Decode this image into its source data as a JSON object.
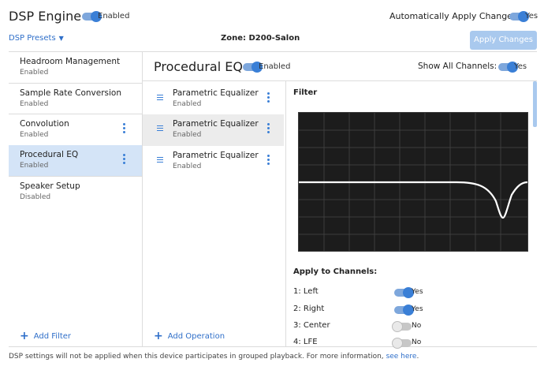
{
  "header": {
    "title": "DSP Engine",
    "engine_status": "Enabled",
    "auto_apply_label": "Automatically Apply Changes",
    "auto_apply_status": "Yes",
    "presets_label": "DSP Presets",
    "zone_label": "Zone: D200-Salon",
    "apply_button": "Apply Changes"
  },
  "sidebar": {
    "items": [
      {
        "name": "Headroom Management",
        "state": "Enabled"
      },
      {
        "name": "Sample Rate Conversion",
        "state": "Enabled"
      },
      {
        "name": "Convolution",
        "state": "Enabled"
      },
      {
        "name": "Procedural EQ",
        "state": "Enabled"
      },
      {
        "name": "Speaker Setup",
        "state": "Disabled"
      }
    ],
    "add_label": "Add Filter"
  },
  "main": {
    "title": "Procedural EQ",
    "status": "Enabled",
    "show_channels_label": "Show All Channels:",
    "show_channels_status": "Yes",
    "operations": [
      {
        "name": "Parametric Equalizer",
        "state": "Enabled"
      },
      {
        "name": "Parametric Equalizer",
        "state": "Enabled"
      },
      {
        "name": "Parametric Equalizer",
        "state": "Enabled"
      }
    ],
    "add_label": "Add Operation"
  },
  "filter_panel": {
    "title": "Filter",
    "channels_title": "Apply to Channels:",
    "channels": [
      {
        "label": "1: Left",
        "status": "Yes",
        "on": true
      },
      {
        "label": "2: Right",
        "status": "Yes",
        "on": true
      },
      {
        "label": "3: Center",
        "status": "No",
        "on": false
      },
      {
        "label": "4: LFE",
        "status": "No",
        "on": false
      }
    ]
  },
  "footer": {
    "text": "DSP settings will not be applied when this device participates in grouped playback. For more information,",
    "link": "see here",
    "end": "."
  },
  "colors": {
    "accent": "#3a7fd6",
    "selected_bg": "#d4e4f7",
    "graph_bg": "#1c1c1c"
  }
}
